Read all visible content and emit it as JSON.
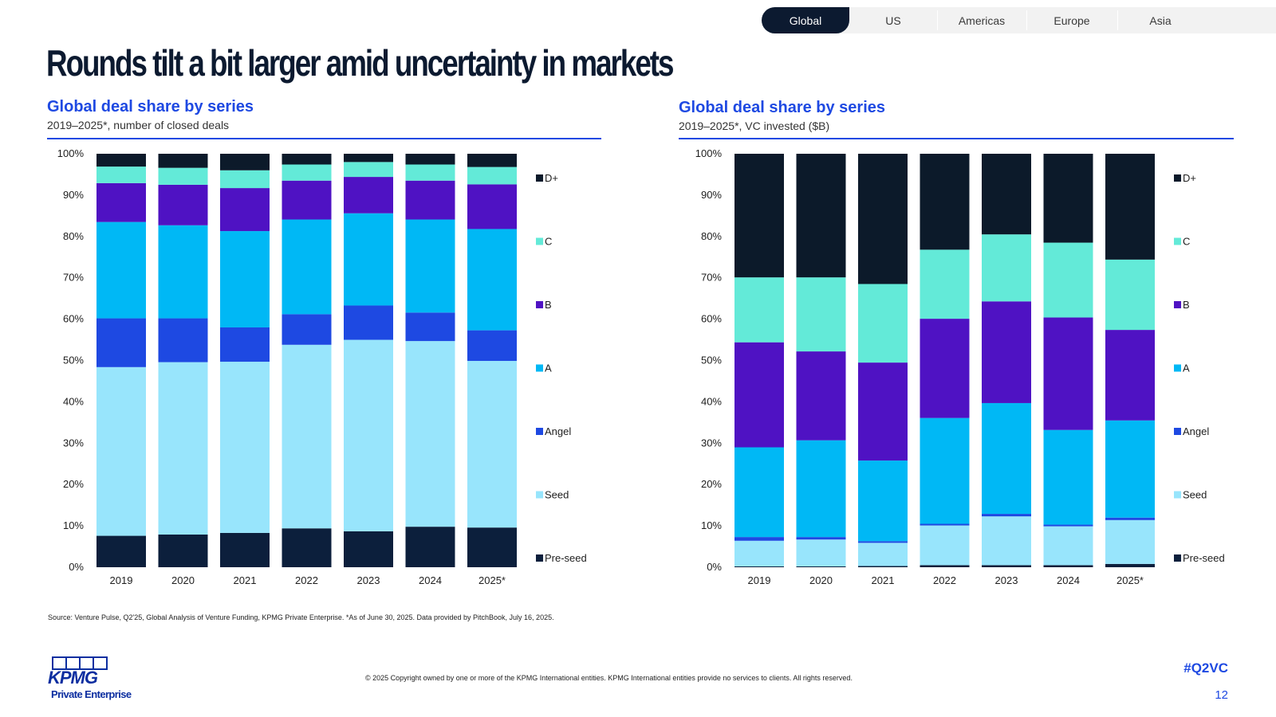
{
  "nav": {
    "tabs": [
      {
        "label": "Global",
        "active": true
      },
      {
        "label": "US",
        "active": false
      },
      {
        "label": "Americas",
        "active": false
      },
      {
        "label": "Europe",
        "active": false
      },
      {
        "label": "Asia",
        "active": false
      }
    ]
  },
  "page": {
    "title": "Rounds tilt a bit larger amid uncertainty in markets",
    "source": "Source: Venture Pulse, Q2'25, Global Analysis of Venture Funding, KPMG Private Enterprise. *As of June 30, 2025. Data provided by PitchBook, July 16, 2025.",
    "copyright": "© 2025 Copyright owned by one or more of the KPMG International entities. KPMG International entities provide no services to clients. All rights reserved.",
    "hashtag": "#Q2VC",
    "page_number": "12",
    "logo_text": "KPMG",
    "logo_subtext": "Private Enterprise"
  },
  "colors": {
    "Pre-seed": "#0c1f3c",
    "Seed": "#98e5fc",
    "Angel": "#1e49e2",
    "A": "#00b8f5",
    "B": "#4f12c3",
    "C": "#63ead8",
    "D+": "#0c1a2a",
    "accent": "#1e49e2"
  },
  "chart_data": [
    {
      "type": "bar",
      "stacked": true,
      "title": "Global deal share by series",
      "subtitle": "2019–2025*, number of closed deals",
      "categories": [
        "2019",
        "2020",
        "2021",
        "2022",
        "2023",
        "2024",
        "2025*"
      ],
      "ylim": [
        0,
        100
      ],
      "yticks": [
        "0%",
        "10%",
        "20%",
        "30%",
        "40%",
        "50%",
        "60%",
        "70%",
        "80%",
        "90%",
        "100%"
      ],
      "legend_position": "right",
      "series": [
        {
          "name": "Pre-seed",
          "values": [
            7.6,
            7.9,
            8.3,
            9.4,
            8.7,
            9.8,
            9.6
          ]
        },
        {
          "name": "Seed",
          "values": [
            40.8,
            41.7,
            41.4,
            44.4,
            46.3,
            44.9,
            40.3
          ]
        },
        {
          "name": "Angel",
          "values": [
            11.8,
            10.6,
            8.3,
            7.4,
            8.3,
            6.9,
            7.4
          ]
        },
        {
          "name": "A",
          "values": [
            23.3,
            22.5,
            23.3,
            22.9,
            22.3,
            22.5,
            24.5
          ]
        },
        {
          "name": "B",
          "values": [
            9.4,
            9.8,
            10.4,
            9.4,
            8.8,
            9.4,
            10.8
          ]
        },
        {
          "name": "C",
          "values": [
            4.0,
            4.1,
            4.3,
            3.9,
            3.6,
            3.9,
            4.2
          ]
        },
        {
          "name": "D+",
          "values": [
            3.1,
            3.4,
            4.0,
            2.6,
            2.0,
            2.6,
            3.2
          ]
        }
      ]
    },
    {
      "type": "bar",
      "stacked": true,
      "title": "Global deal share by series",
      "subtitle": "2019–2025*, VC invested ($B)",
      "categories": [
        "2019",
        "2020",
        "2021",
        "2022",
        "2023",
        "2024",
        "2025*"
      ],
      "ylim": [
        0,
        100
      ],
      "yticks": [
        "0%",
        "10%",
        "20%",
        "30%",
        "40%",
        "50%",
        "60%",
        "70%",
        "80%",
        "90%",
        "100%"
      ],
      "legend_position": "right",
      "series": [
        {
          "name": "Pre-seed",
          "values": [
            0.2,
            0.2,
            0.3,
            0.5,
            0.5,
            0.5,
            0.8
          ]
        },
        {
          "name": "Seed",
          "values": [
            6.2,
            6.5,
            5.6,
            9.6,
            11.8,
            9.4,
            10.6
          ]
        },
        {
          "name": "Angel",
          "values": [
            0.9,
            0.6,
            0.4,
            0.4,
            0.6,
            0.4,
            0.6
          ]
        },
        {
          "name": "A",
          "values": [
            21.7,
            23.4,
            19.5,
            25.6,
            26.8,
            22.9,
            23.5
          ]
        },
        {
          "name": "B",
          "values": [
            25.4,
            21.5,
            23.7,
            24.0,
            24.6,
            27.2,
            21.9
          ]
        },
        {
          "name": "C",
          "values": [
            15.7,
            17.9,
            19.0,
            16.7,
            16.2,
            18.1,
            17.0
          ]
        },
        {
          "name": "D+",
          "values": [
            29.9,
            29.9,
            31.5,
            23.2,
            19.5,
            21.5,
            25.6
          ]
        }
      ]
    }
  ]
}
